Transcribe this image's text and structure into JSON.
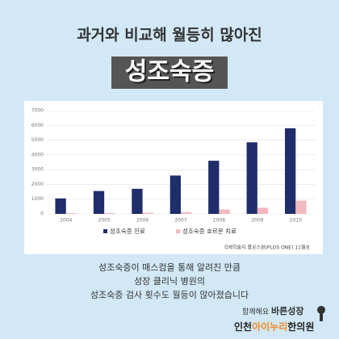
{
  "header": {
    "title": "과거와 비교해 월등히 많아진",
    "banner": "성조숙증"
  },
  "chart_data": {
    "type": "bar",
    "categories": [
      "2004",
      "2005",
      "2006",
      "2007",
      "2008",
      "2009",
      "2010"
    ],
    "series": [
      {
        "name": "성조숙증 진료",
        "color": "#1f2d6b",
        "values": [
          1050,
          1550,
          1700,
          2600,
          3600,
          4850,
          5800
        ]
      },
      {
        "name": "성조숙증 호르몬 치료",
        "color": "#f2b8be",
        "values": [
          50,
          60,
          80,
          120,
          300,
          420,
          900
        ]
      }
    ],
    "ylim": [
      0,
      7000
    ],
    "yticks": [
      0,
      1000,
      2000,
      3000,
      4000,
      5000,
      6000,
      7000
    ],
    "grid": true,
    "legend": "bottom",
    "source": "국제학술지 플로스원(PLOS ONE) 11월호"
  },
  "body": {
    "lines": [
      "성조숙증이 매스컴을 통해 알려진 만큼",
      "성장 클리닉 병원의",
      "성조숙증 검사 횟수도 월등이 많아졌습니다"
    ]
  },
  "logo": {
    "tagline_a": "함께해요",
    "tagline_b": "바른성장",
    "name_a": "인천",
    "name_b": "아이누리",
    "name_c": "한의원"
  }
}
